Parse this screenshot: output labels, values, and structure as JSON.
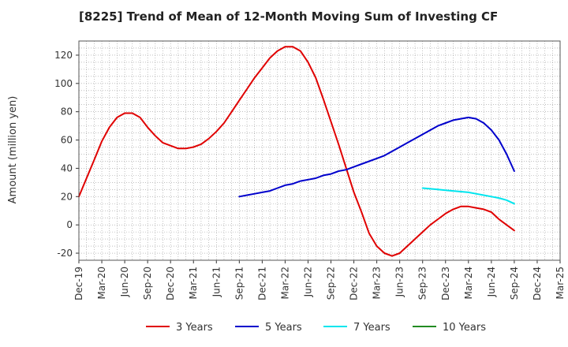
{
  "chart_data": {
    "type": "line",
    "title": "[8225]  Trend of Mean of 12-Month Moving Sum of Investing CF",
    "ylabel": "Amount (million yen)",
    "xlabel": "",
    "ylim": [
      -25,
      130
    ],
    "yticks": [
      -20,
      0,
      20,
      40,
      60,
      80,
      100,
      120
    ],
    "xlim": [
      "2019-12",
      "2025-03"
    ],
    "xtick_labels": [
      "Dec-19",
      "Mar-20",
      "Jun-20",
      "Sep-20",
      "Dec-20",
      "Mar-21",
      "Jun-21",
      "Sep-21",
      "Dec-21",
      "Mar-22",
      "Jun-22",
      "Sep-22",
      "Dec-22",
      "Mar-23",
      "Jun-23",
      "Sep-23",
      "Dec-23",
      "Mar-24",
      "Jun-24",
      "Sep-24",
      "Dec-24",
      "Mar-25"
    ],
    "grid": true,
    "legend_position": "bottom",
    "series": [
      {
        "name": "3 Years",
        "color": "#e00000",
        "x": [
          "2019-12",
          "2020-01",
          "2020-02",
          "2020-03",
          "2020-04",
          "2020-05",
          "2020-06",
          "2020-07",
          "2020-08",
          "2020-09",
          "2020-10",
          "2020-11",
          "2020-12",
          "2021-01",
          "2021-02",
          "2021-03",
          "2021-04",
          "2021-05",
          "2021-06",
          "2021-07",
          "2021-08",
          "2021-09",
          "2021-10",
          "2021-11",
          "2021-12",
          "2022-01",
          "2022-02",
          "2022-03",
          "2022-04",
          "2022-05",
          "2022-06",
          "2022-07",
          "2022-08",
          "2022-09",
          "2022-10",
          "2022-11",
          "2022-12",
          "2023-01",
          "2023-02",
          "2023-03",
          "2023-04",
          "2023-05",
          "2023-06",
          "2023-07",
          "2023-08",
          "2023-09",
          "2023-10",
          "2023-11",
          "2023-12",
          "2024-01",
          "2024-02",
          "2024-03",
          "2024-04",
          "2024-05",
          "2024-06",
          "2024-07",
          "2024-08",
          "2024-09"
        ],
        "values": [
          20,
          33,
          46,
          59,
          69,
          76,
          79,
          79,
          76,
          69,
          63,
          58,
          56,
          54,
          54,
          55,
          57,
          61,
          66,
          72,
          80,
          88,
          96,
          104,
          111,
          118,
          123,
          126,
          126,
          123,
          115,
          104,
          89,
          73,
          57,
          40,
          23,
          9,
          -6,
          -15,
          -20,
          -22,
          -20,
          -15,
          -10,
          -5,
          0,
          4,
          8,
          11,
          13,
          13,
          12,
          11,
          9,
          4,
          0,
          -4
        ]
      },
      {
        "name": "5 Years",
        "color": "#0000cc",
        "x": [
          "2021-09",
          "2021-10",
          "2021-11",
          "2021-12",
          "2022-01",
          "2022-02",
          "2022-03",
          "2022-04",
          "2022-05",
          "2022-06",
          "2022-07",
          "2022-08",
          "2022-09",
          "2022-10",
          "2022-11",
          "2022-12",
          "2023-01",
          "2023-02",
          "2023-03",
          "2023-04",
          "2023-05",
          "2023-06",
          "2023-07",
          "2023-08",
          "2023-09",
          "2023-10",
          "2023-11",
          "2023-12",
          "2024-01",
          "2024-02",
          "2024-03",
          "2024-04",
          "2024-05",
          "2024-06",
          "2024-07",
          "2024-08",
          "2024-09"
        ],
        "values": [
          20,
          21,
          22,
          23,
          24,
          26,
          28,
          29,
          31,
          32,
          33,
          35,
          36,
          38,
          39,
          41,
          43,
          45,
          47,
          49,
          52,
          55,
          58,
          61,
          64,
          67,
          70,
          72,
          74,
          75,
          76,
          75,
          72,
          67,
          60,
          50,
          38
        ]
      },
      {
        "name": "7 Years",
        "color": "#00e5ee",
        "x": [
          "2023-09",
          "2023-10",
          "2023-11",
          "2023-12",
          "2024-01",
          "2024-02",
          "2024-03",
          "2024-04",
          "2024-05",
          "2024-06",
          "2024-07",
          "2024-08",
          "2024-09"
        ],
        "values": [
          26,
          25.5,
          25,
          24.5,
          24,
          23.5,
          23,
          22,
          21,
          20,
          19,
          17.5,
          15
        ]
      },
      {
        "name": "10 Years",
        "color": "#228b22",
        "x": [],
        "values": []
      }
    ]
  }
}
